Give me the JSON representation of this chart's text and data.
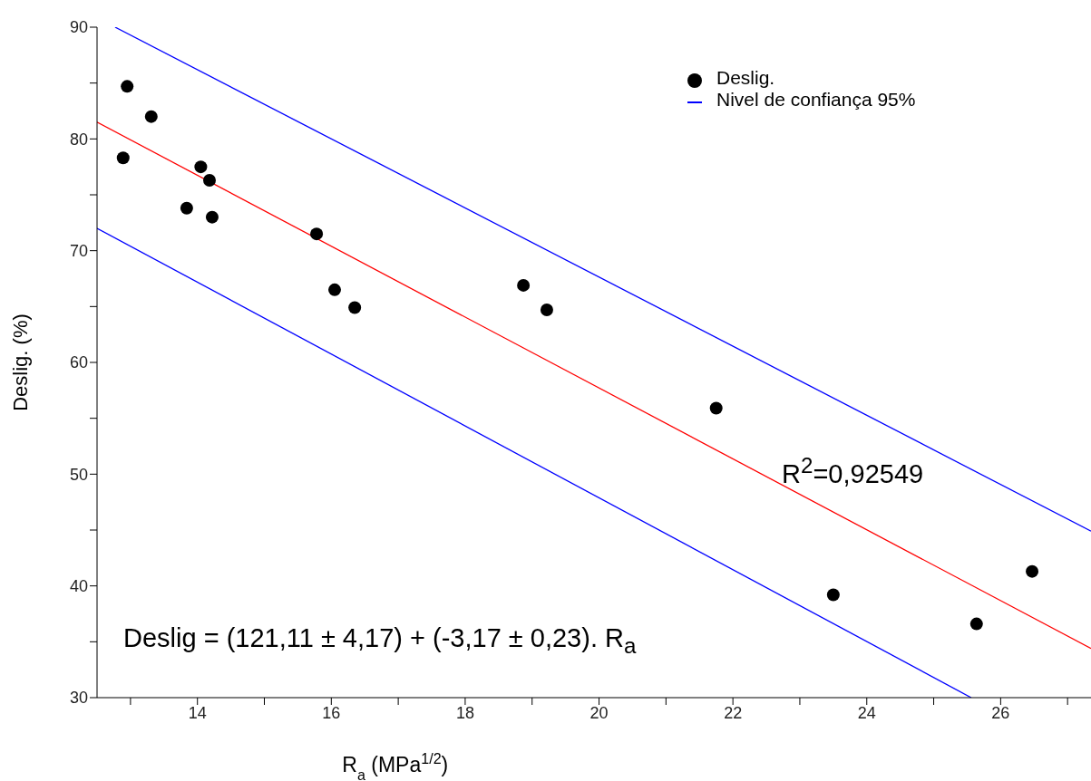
{
  "chart_data": {
    "type": "scatter",
    "xlabel": "R$_{a}$ (MPa$^{1/2}$)",
    "ylabel": "Deslig. (%)",
    "xlim": [
      12.5,
      27.35
    ],
    "ylim": [
      30,
      90
    ],
    "xticks": [
      {
        "value": 13,
        "label": null
      },
      14,
      {
        "value": 15,
        "label": null
      },
      16,
      {
        "value": 17,
        "label": null
      },
      18,
      {
        "value": 19,
        "label": null
      },
      20,
      {
        "value": 21,
        "label": null
      },
      22,
      {
        "value": 23,
        "label": null
      },
      24,
      {
        "value": 25,
        "label": null
      },
      26,
      {
        "value": 27,
        "label": null
      }
    ],
    "yticks": [
      30,
      {
        "value": 35,
        "label": null
      },
      40,
      {
        "value": 45,
        "label": null
      },
      50,
      {
        "value": 55,
        "label": null
      },
      60,
      {
        "value": 65,
        "label": null
      },
      70,
      {
        "value": 75,
        "label": null
      },
      80,
      {
        "value": 85,
        "label": null
      },
      90
    ],
    "legend": "top right",
    "series": [
      {
        "name": "Deslig.",
        "color": "#000000",
        "marker": "circle",
        "x": [
          12.95,
          13.31,
          12.89,
          14.05,
          14.18,
          13.84,
          14.22,
          15.78,
          16.05,
          16.35,
          18.87,
          19.22,
          21.75,
          23.5,
          25.64,
          26.47
        ],
        "values": [
          84.7,
          82.0,
          78.3,
          77.5,
          76.3,
          73.8,
          73.0,
          71.5,
          66.5,
          64.9,
          66.9,
          64.7,
          55.9,
          39.2,
          36.6,
          41.3
        ]
      },
      {
        "type": "line",
        "color": "#ff0000",
        "x": [
          12.5,
          27.35
        ],
        "values": [
          81.5,
          34.4
        ]
      },
      {
        "type": "line",
        "name": "Nivel de confiança 95%",
        "color": "#0000ff",
        "x": [
          12.77,
          27.35
        ],
        "values": [
          90,
          44.9
        ]
      },
      {
        "type": "line",
        "color": "#0000ff",
        "x": [
          12.5,
          25.56
        ],
        "values": [
          72.0,
          30.0
        ]
      }
    ],
    "annotations": [
      "R$^{2}$=0,92549",
      "Deslig = (121,11 ± 4,17) + (-3,17 ± 0,23). R$_{a}$"
    ]
  }
}
